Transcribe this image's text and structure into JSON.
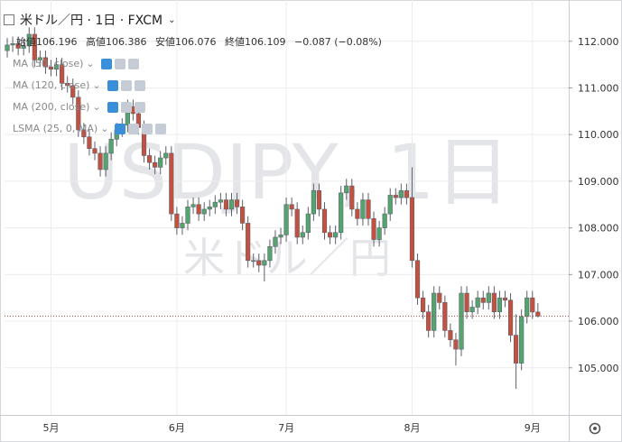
{
  "header": {
    "title": "米ドル／円 · 1日 · FXCM",
    "ohlc_labels": [
      "始値",
      "高値",
      "安値",
      "終値"
    ],
    "change": "−0.087 (−0.08%)"
  },
  "indicators": [
    "MA (50, close)",
    "MA (120, close)",
    "MA (200, close)",
    "LSMA (25, 0, MA)"
  ],
  "chart_data": {
    "type": "candlestick",
    "watermark": [
      "USDJPY, 1日",
      "米ドル／円"
    ],
    "categories": [
      null,
      null,
      null,
      null,
      null,
      null,
      null,
      null,
      "5月",
      null,
      null,
      null,
      null,
      null,
      null,
      null,
      null,
      null,
      null,
      null,
      null,
      null,
      null,
      null,
      null,
      null,
      null,
      null,
      null,
      null,
      null,
      "6月",
      null,
      null,
      null,
      null,
      null,
      null,
      null,
      null,
      null,
      null,
      null,
      null,
      null,
      null,
      null,
      null,
      null,
      null,
      null,
      "7月",
      null,
      null,
      null,
      null,
      null,
      null,
      null,
      null,
      null,
      null,
      null,
      null,
      null,
      null,
      null,
      null,
      null,
      null,
      null,
      null,
      null,
      null,
      "8月",
      null,
      null,
      null,
      null,
      null,
      null,
      null,
      null,
      null,
      null,
      null,
      null,
      null,
      null,
      null,
      null,
      null,
      null,
      null,
      null,
      null,
      "9月",
      null
    ],
    "open": [
      111.8,
      111.92,
      111.95,
      111.85,
      111.9,
      112.15,
      111.6,
      111.65,
      111.45,
      111.4,
      111.5,
      111.1,
      111.05,
      110.8,
      110.1,
      109.95,
      109.7,
      109.6,
      109.25,
      109.6,
      109.9,
      110.1,
      110.2,
      110.6,
      110.45,
      110.15,
      109.55,
      109.4,
      109.3,
      109.5,
      109.6,
      108.3,
      108.0,
      108.1,
      108.45,
      108.5,
      108.3,
      108.4,
      108.45,
      108.55,
      108.6,
      108.4,
      108.6,
      108.45,
      108.1,
      107.3,
      107.3,
      107.2,
      107.3,
      107.6,
      107.8,
      107.85,
      108.5,
      108.4,
      107.8,
      107.9,
      108.3,
      108.8,
      108.4,
      107.9,
      107.8,
      107.9,
      108.75,
      108.9,
      108.4,
      108.2,
      108.6,
      108.2,
      107.75,
      108.0,
      108.3,
      108.7,
      108.65,
      108.8,
      108.65,
      107.3,
      106.5,
      106.2,
      105.8,
      106.6,
      106.4,
      105.8,
      105.6,
      105.4,
      106.6,
      106.2,
      106.3,
      106.5,
      106.4,
      106.6,
      106.2,
      106.5,
      106.45,
      105.7,
      105.1,
      106.1,
      106.5,
      106.196
    ],
    "high": [
      112.07,
      112.1,
      112.1,
      112.05,
      112.3,
      112.3,
      111.8,
      111.8,
      111.6,
      111.65,
      111.65,
      111.25,
      111.2,
      110.95,
      110.25,
      110.1,
      109.85,
      109.75,
      109.75,
      110.05,
      110.25,
      110.35,
      110.75,
      110.75,
      110.6,
      110.3,
      109.7,
      109.55,
      109.65,
      109.75,
      109.75,
      108.45,
      108.25,
      108.6,
      108.65,
      108.65,
      108.55,
      108.6,
      108.7,
      108.75,
      108.75,
      108.75,
      108.75,
      108.6,
      108.25,
      107.45,
      107.45,
      107.45,
      107.75,
      107.95,
      108.0,
      108.65,
      108.65,
      108.55,
      108.05,
      108.45,
      108.95,
      108.95,
      108.55,
      108.05,
      108.05,
      108.9,
      109.05,
      109.05,
      108.55,
      108.75,
      108.75,
      108.35,
      108.15,
      108.45,
      108.85,
      108.85,
      108.95,
      108.95,
      109.3,
      107.45,
      106.65,
      106.35,
      106.75,
      106.75,
      106.55,
      105.95,
      105.75,
      106.75,
      106.75,
      106.45,
      106.65,
      106.65,
      106.75,
      106.75,
      106.65,
      106.65,
      106.6,
      106.15,
      106.25,
      106.65,
      106.65,
      106.386
    ],
    "low": [
      111.65,
      111.77,
      111.7,
      111.7,
      111.75,
      111.45,
      111.45,
      111.3,
      111.25,
      111.25,
      110.95,
      110.9,
      110.65,
      109.95,
      109.8,
      109.55,
      109.45,
      109.1,
      109.1,
      109.45,
      109.75,
      109.95,
      110.05,
      110.3,
      110.0,
      109.4,
      109.25,
      109.15,
      109.15,
      109.35,
      108.15,
      107.85,
      107.85,
      107.95,
      108.3,
      108.15,
      108.15,
      108.25,
      108.3,
      108.4,
      108.25,
      108.25,
      108.3,
      107.95,
      107.15,
      107.15,
      107.05,
      106.85,
      107.15,
      107.45,
      107.65,
      107.7,
      108.25,
      107.65,
      107.65,
      107.75,
      108.15,
      108.25,
      107.75,
      107.65,
      107.65,
      107.75,
      108.6,
      108.25,
      108.05,
      108.05,
      108.05,
      107.6,
      107.6,
      107.85,
      108.15,
      108.5,
      108.5,
      108.5,
      107.15,
      106.35,
      106.05,
      105.65,
      105.65,
      106.25,
      105.65,
      105.45,
      105.05,
      105.25,
      106.05,
      106.05,
      106.15,
      106.25,
      106.25,
      106.05,
      106.05,
      106.3,
      105.55,
      104.55,
      104.95,
      105.95,
      106.05,
      106.076
    ],
    "close": [
      111.92,
      111.95,
      111.85,
      111.9,
      112.15,
      111.6,
      111.65,
      111.45,
      111.4,
      111.5,
      111.1,
      111.05,
      110.8,
      110.1,
      109.95,
      109.7,
      109.6,
      109.25,
      109.6,
      109.9,
      110.1,
      110.2,
      110.6,
      110.45,
      110.15,
      109.55,
      109.4,
      109.3,
      109.5,
      109.6,
      108.3,
      108.0,
      108.1,
      108.45,
      108.5,
      108.3,
      108.4,
      108.45,
      108.55,
      108.6,
      108.4,
      108.6,
      108.45,
      108.1,
      107.3,
      107.3,
      107.2,
      107.3,
      107.6,
      107.8,
      107.85,
      108.5,
      108.4,
      107.8,
      107.9,
      108.3,
      108.8,
      108.4,
      107.9,
      107.8,
      107.9,
      108.75,
      108.9,
      108.4,
      108.2,
      108.6,
      108.2,
      107.75,
      108.0,
      108.3,
      108.7,
      108.65,
      108.8,
      108.65,
      107.3,
      106.5,
      106.2,
      105.8,
      106.6,
      106.4,
      105.8,
      105.6,
      105.4,
      106.6,
      106.2,
      106.3,
      106.5,
      106.4,
      106.6,
      106.2,
      106.5,
      106.45,
      105.7,
      105.1,
      106.1,
      106.5,
      106.196,
      106.109
    ],
    "up_color": "#53a56e",
    "down_color": "#c4513f",
    "wick_color": "#5d606b",
    "ylim": [
      103.99,
      112.73
    ],
    "yticks": [
      {
        "value": 105,
        "label": "105.000"
      },
      {
        "value": 106,
        "label": "106.000"
      },
      {
        "value": 107,
        "label": "107.000"
      },
      {
        "value": 108,
        "label": "108.000"
      },
      {
        "value": 109,
        "label": "109.000"
      },
      {
        "value": 110,
        "label": "110.000"
      },
      {
        "value": 111,
        "label": "111.000"
      },
      {
        "value": 112,
        "label": "112.000"
      }
    ],
    "grid": true,
    "last_price_line": true,
    "last_price_color": "#a8453a"
  }
}
